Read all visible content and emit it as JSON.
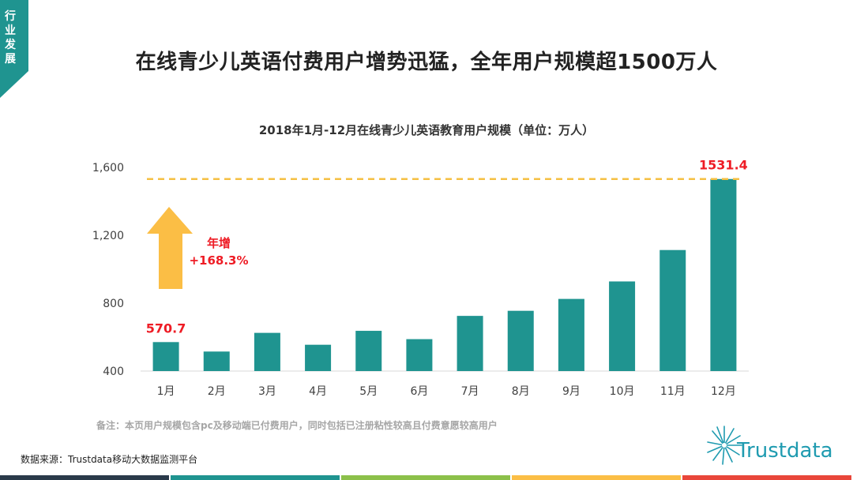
{
  "section_tag": "行业发展",
  "headline": "在线青少儿英语付费用户增势迅猛，全年用户规模超1500万人",
  "note": "备注：本页用户规模包含pc及移动端已付费用户，同时包括已注册粘性较高且付费意愿较高用户",
  "source": "数据来源：Trustdata移动大数据监测平台",
  "logo_text": "Trustdata",
  "growth": {
    "label": "年增",
    "value": "+168.3%"
  },
  "colors": {
    "teal": "#1f9490",
    "accent": "#ee1c25",
    "arrow": "#fbbe45",
    "dash": "#f5c043",
    "tag": "#1f9490"
  },
  "bottom_stripes": [
    "#2a3a4a",
    "#1f9490",
    "#8cc04a",
    "#fbbe45",
    "#e9463a"
  ],
  "chart_data": {
    "type": "bar",
    "title": "2018年1月-12月在线青少儿英语教育用户规模（单位：万人）",
    "categories": [
      "1月",
      "2月",
      "3月",
      "4月",
      "5月",
      "6月",
      "7月",
      "8月",
      "9月",
      "10月",
      "11月",
      "12月"
    ],
    "values": [
      570.7,
      515,
      625,
      555,
      637,
      588,
      725,
      755,
      825,
      928,
      1113,
      1531.4
    ],
    "labeled_values": {
      "0": "570.7",
      "11": "1531.4"
    },
    "ylim": [
      400,
      1600
    ],
    "yticks": [
      "400",
      "800",
      "1,200",
      "1,600"
    ],
    "ytick_values": [
      400,
      800,
      1200,
      1600
    ],
    "reference_line": 1531.4,
    "xlabel": "",
    "ylabel": ""
  }
}
